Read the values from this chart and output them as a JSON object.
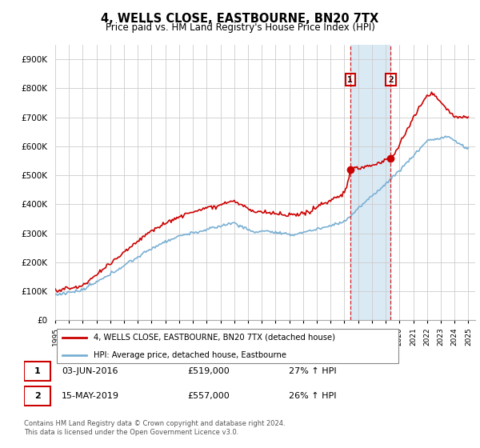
{
  "title": "4, WELLS CLOSE, EASTBOURNE, BN20 7TX",
  "subtitle": "Price paid vs. HM Land Registry's House Price Index (HPI)",
  "ylabel_ticks": [
    "£0",
    "£100K",
    "£200K",
    "£300K",
    "£400K",
    "£500K",
    "£600K",
    "£700K",
    "£800K",
    "£900K"
  ],
  "ytick_values": [
    0,
    100000,
    200000,
    300000,
    400000,
    500000,
    600000,
    700000,
    800000,
    900000
  ],
  "ylim": [
    0,
    950000
  ],
  "xlim_start": 1995.0,
  "xlim_end": 2025.5,
  "sale1_x": 2016.42,
  "sale1_y": 519000,
  "sale2_x": 2019.37,
  "sale2_y": 557000,
  "legend_line1": "4, WELLS CLOSE, EASTBOURNE, BN20 7TX (detached house)",
  "legend_line2": "HPI: Average price, detached house, Eastbourne",
  "footnote": "Contains HM Land Registry data © Crown copyright and database right 2024.\nThis data is licensed under the Open Government Licence v3.0.",
  "red_color": "#cc0000",
  "blue_color": "#7ab0d4",
  "highlight_color": "#daeaf5",
  "grid_color": "#cccccc",
  "background_color": "#ffffff"
}
